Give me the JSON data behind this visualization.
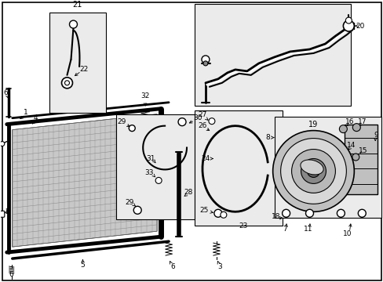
{
  "bg_color": "#ffffff",
  "line_color": "#000000",
  "gray_fill": "#d8d8d8",
  "light_gray": "#ebebeb",
  "boxes": {
    "b21": [
      62,
      195,
      118,
      318
    ],
    "b29": [
      148,
      148,
      248,
      280
    ],
    "b24": [
      248,
      112,
      355,
      280
    ],
    "b20": [
      248,
      280,
      455,
      358
    ],
    "b13": [
      362,
      182,
      432,
      240
    ],
    "comp": [
      348,
      28,
      487,
      148
    ]
  }
}
